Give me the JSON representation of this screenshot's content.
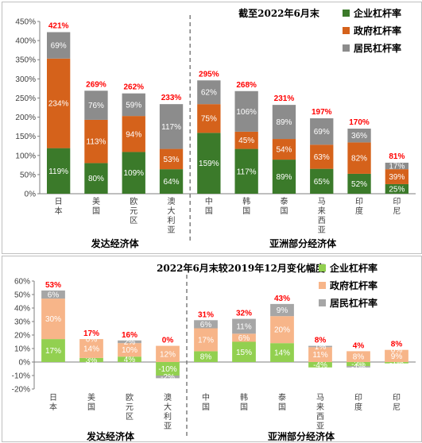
{
  "chart_data": [
    {
      "type": "bar",
      "stacked": true,
      "title": "截至2022年6月末",
      "categories": [
        "日本",
        "美国",
        "欧元区",
        "澳大利亚",
        "中国",
        "韩国",
        "泰国",
        "马来西亚",
        "印度",
        "印尼"
      ],
      "groups": [
        {
          "label": "发达经济体",
          "count": 4
        },
        {
          "label": "亚洲部分经济体",
          "count": 6
        }
      ],
      "series": [
        {
          "name": "企业杠杆率",
          "color": "#3b7a2a",
          "label_color": "#ffffff",
          "values": [
            119,
            80,
            109,
            64,
            159,
            117,
            89,
            65,
            52,
            25
          ]
        },
        {
          "name": "政府杠杆率",
          "color": "#d5621b",
          "label_color": "#ffffff",
          "values": [
            234,
            113,
            94,
            53,
            75,
            45,
            54,
            63,
            82,
            39
          ]
        },
        {
          "name": "居民杠杆率",
          "color": "#8c8c8c",
          "label_color": "#ffffff",
          "values": [
            69,
            76,
            59,
            117,
            62,
            106,
            89,
            69,
            36,
            17
          ]
        }
      ],
      "value_labels": [
        [
          "119%",
          "80%",
          "109%",
          "64%",
          "159%",
          "117%",
          "89%",
          "65%",
          "52%",
          "25%"
        ],
        [
          "234%",
          "113%",
          "94%",
          "53%",
          "75%",
          "45%",
          "54%",
          "63%",
          "82%",
          "39%"
        ],
        [
          "69%",
          "76%",
          "59%",
          "117%",
          "62%",
          "106%",
          "89%",
          "69%",
          "36%",
          "17%"
        ]
      ],
      "totals": [
        "421%",
        "269%",
        "262%",
        "233%",
        "295%",
        "268%",
        "231%",
        "197%",
        "170%",
        "81%"
      ],
      "ylim": [
        0,
        450
      ],
      "yticks": [
        "0%",
        "50%",
        "100%",
        "150%",
        "200%",
        "250%",
        "300%",
        "350%",
        "400%",
        "450%"
      ],
      "legend_position": "top-right",
      "grid": false,
      "xlabel": "",
      "ylabel": ""
    },
    {
      "type": "bar",
      "stacked": true,
      "title": "2022年6月末较2019年12月变化幅度",
      "categories": [
        "日本",
        "美国",
        "欧元区",
        "澳大利亚",
        "中国",
        "韩国",
        "泰国",
        "马来西亚",
        "印度",
        "印尼"
      ],
      "groups": [
        {
          "label": "发达经济体",
          "count": 4
        },
        {
          "label": "亚洲部分经济体",
          "count": 6
        }
      ],
      "series": [
        {
          "name": "企业杠杆率",
          "color": "#92d050",
          "label_color": "#ffffff",
          "values": [
            17,
            3,
            4,
            -10,
            8,
            15,
            14,
            -4,
            -3,
            -1
          ]
        },
        {
          "name": "政府杠杆率",
          "color": "#f7b589",
          "label_color": "#ffffff",
          "values": [
            30,
            14,
            10,
            12,
            17,
            6,
            20,
            11,
            8,
            9
          ]
        },
        {
          "name": "居民杠杆率",
          "color": "#a6a6a6",
          "label_color": "#ffffff",
          "values": [
            6,
            0,
            2,
            -2,
            6,
            11,
            9,
            1,
            -1,
            0
          ]
        }
      ],
      "value_labels": [
        [
          "17%",
          "3%",
          "4%",
          "-10%",
          "8%",
          "15%",
          "14%",
          "-4%",
          "-3%",
          "-1%"
        ],
        [
          "30%",
          "14%",
          "10%",
          "12%",
          "17%",
          "6%",
          "20%",
          "11%",
          "8%",
          "9%"
        ],
        [
          "6%",
          "0%",
          "2%",
          "-2%",
          "6%",
          "11%",
          "9%",
          "1%",
          "-1%",
          "0%"
        ]
      ],
      "totals": [
        "53%",
        "17%",
        "16%",
        "0%",
        "31%",
        "32%",
        "43%",
        "8%",
        "4%",
        "8%"
      ],
      "ylim": [
        -20,
        60
      ],
      "yticks": [
        "-20%",
        "-10%",
        "0%",
        "10%",
        "20%",
        "30%",
        "40%",
        "50%",
        "60%"
      ],
      "legend_position": "right",
      "grid": false,
      "xlabel": "",
      "ylabel": ""
    }
  ]
}
